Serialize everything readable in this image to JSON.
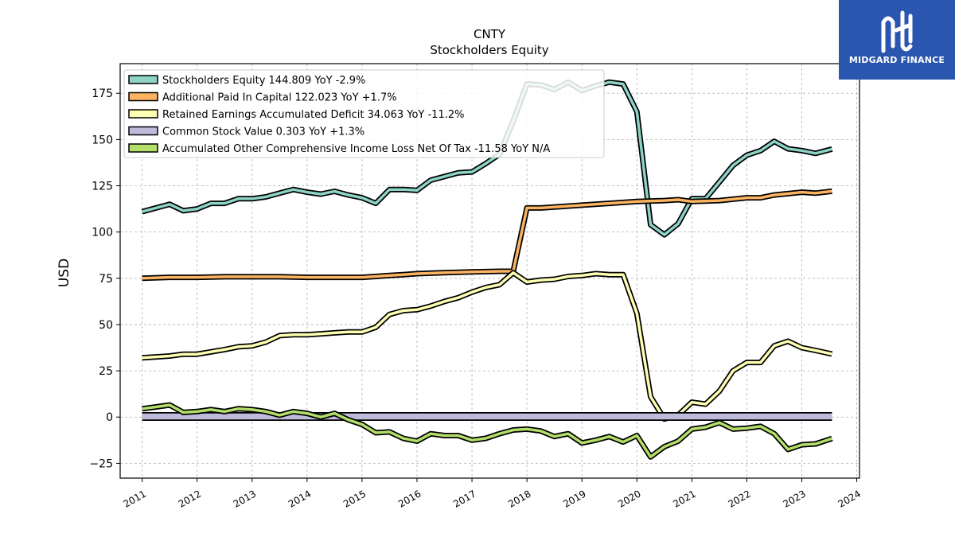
{
  "chart_data": {
    "type": "line",
    "title": "CNTY",
    "subtitle": "Stockholders  Equity",
    "ylabel": "USD",
    "xlabel": "",
    "ylim": [
      -33,
      191
    ],
    "xlim": [
      2010.6,
      2024.05
    ],
    "y_ticks": [
      -25,
      0,
      25,
      50,
      75,
      100,
      125,
      150,
      175
    ],
    "x_ticks": [
      2011,
      2012,
      2013,
      2014,
      2015,
      2016,
      2017,
      2018,
      2019,
      2020,
      2021,
      2022,
      2023,
      2024
    ],
    "grid": true,
    "legend_position": "top-left",
    "series": [
      {
        "name": "Stockholders Equity  144.809 YoY -2.9%",
        "color": "#8dd3c7",
        "x": [
          2011.0,
          2011.25,
          2011.5,
          2011.75,
          2012.0,
          2012.25,
          2012.5,
          2012.75,
          2013.0,
          2013.25,
          2013.5,
          2013.75,
          2014.0,
          2014.25,
          2014.5,
          2014.75,
          2015.0,
          2015.25,
          2015.5,
          2015.75,
          2016.0,
          2016.25,
          2016.5,
          2016.75,
          2017.0,
          2017.25,
          2017.5,
          2017.75,
          2018.0,
          2018.25,
          2018.5,
          2018.75,
          2019.0,
          2019.25,
          2019.5,
          2019.75,
          2020.0,
          2020.25,
          2020.5,
          2020.75,
          2021.0,
          2021.25,
          2021.5,
          2021.75,
          2022.0,
          2022.25,
          2022.5,
          2022.75,
          2023.0,
          2023.25,
          2023.55
        ],
        "y": [
          111,
          113,
          115,
          111.5,
          112.5,
          115.5,
          115.5,
          118,
          118,
          119,
          121,
          123,
          121.5,
          120.5,
          122,
          120,
          118.5,
          115.5,
          123,
          123,
          122.5,
          128,
          130,
          132,
          132.5,
          137,
          142,
          160,
          180,
          179.5,
          177,
          181,
          176.5,
          179,
          181,
          180,
          165,
          104,
          98.5,
          104.5,
          118,
          118,
          127,
          136,
          141.5,
          144,
          149,
          145,
          144,
          142.5,
          144.809
        ]
      },
      {
        "name": "Additional Paid In Capital  122.023 YoY +1.7%",
        "color": "#fdb462",
        "x": [
          2011.0,
          2011.5,
          2012.0,
          2012.5,
          2013.0,
          2013.5,
          2014.0,
          2014.5,
          2015.0,
          2015.25,
          2015.5,
          2015.75,
          2016.0,
          2016.5,
          2017.0,
          2017.5,
          2017.75,
          2018.0,
          2018.25,
          2018.5,
          2019.0,
          2019.5,
          2020.0,
          2020.5,
          2020.75,
          2021.0,
          2021.5,
          2022.0,
          2022.25,
          2022.5,
          2023.0,
          2023.25,
          2023.55
        ],
        "y": [
          75,
          75.5,
          75.5,
          75.8,
          75.8,
          75.8,
          75.5,
          75.5,
          75.5,
          76,
          76.5,
          77,
          77.5,
          78,
          78.5,
          78.8,
          78.8,
          113,
          113,
          113.5,
          114.5,
          115.5,
          116.5,
          117,
          117.5,
          116.5,
          117,
          118.5,
          118.5,
          120,
          121.5,
          121,
          122.023
        ]
      },
      {
        "name": "Retained Earnings Accumulated Deficit  34.063 YoY -11.2%",
        "color": "#ffffb3",
        "x": [
          2011.0,
          2011.5,
          2011.75,
          2012.0,
          2012.5,
          2012.75,
          2013.0,
          2013.25,
          2013.5,
          2013.75,
          2014.0,
          2014.25,
          2014.5,
          2014.75,
          2015.0,
          2015.25,
          2015.5,
          2015.75,
          2016.0,
          2016.25,
          2016.5,
          2016.75,
          2017.0,
          2017.25,
          2017.5,
          2017.75,
          2018.0,
          2018.25,
          2018.5,
          2018.75,
          2019.0,
          2019.25,
          2019.5,
          2019.75,
          2020.0,
          2020.25,
          2020.5,
          2020.75,
          2021.0,
          2021.25,
          2021.5,
          2021.75,
          2022.0,
          2022.25,
          2022.5,
          2022.75,
          2023.0,
          2023.25,
          2023.55
        ],
        "y": [
          32,
          33,
          34,
          34,
          36.5,
          38,
          38.5,
          40.5,
          44,
          44.5,
          44.5,
          45,
          45.5,
          46,
          46,
          48.5,
          55.5,
          57.5,
          58,
          60,
          62.5,
          64.5,
          67.5,
          70,
          71.5,
          78,
          73,
          74,
          74.5,
          76,
          76.5,
          77.5,
          77,
          77,
          56,
          11,
          -1,
          1,
          8,
          7,
          14,
          25,
          29.5,
          29.5,
          38.5,
          41,
          37.5,
          36,
          34.063
        ]
      },
      {
        "name": "Common Stock Value  0.303 YoY +1.3%",
        "color": "#bebada",
        "x": [
          2011.0,
          2012.0,
          2013.0,
          2014.0,
          2015.0,
          2016.0,
          2017.0,
          2018.0,
          2019.0,
          2020.0,
          2021.0,
          2022.0,
          2023.0,
          2023.55
        ],
        "y": [
          0.3,
          0.3,
          0.3,
          0.3,
          0.3,
          0.3,
          0.3,
          0.3,
          0.3,
          0.3,
          0.3,
          0.3,
          0.3,
          0.303
        ]
      },
      {
        "name": "Accumulated Other Comprehensive Income Loss Net Of Tax  -11.58 YoY N/A",
        "color": "#b3de69",
        "x": [
          2011.0,
          2011.25,
          2011.5,
          2011.75,
          2012.0,
          2012.25,
          2012.5,
          2012.75,
          2013.0,
          2013.25,
          2013.5,
          2013.75,
          2014.0,
          2014.25,
          2014.5,
          2014.75,
          2015.0,
          2015.25,
          2015.5,
          2015.75,
          2016.0,
          2016.25,
          2016.5,
          2016.75,
          2017.0,
          2017.25,
          2017.5,
          2017.75,
          2018.0,
          2018.25,
          2018.5,
          2018.75,
          2019.0,
          2019.25,
          2019.5,
          2019.75,
          2020.0,
          2020.25,
          2020.5,
          2020.75,
          2021.0,
          2021.25,
          2021.5,
          2021.75,
          2022.0,
          2022.25,
          2022.5,
          2022.75,
          2023.0,
          2023.25,
          2023.55
        ],
        "y": [
          4.5,
          5.5,
          6.5,
          2.5,
          3,
          4,
          3,
          4.5,
          4,
          3,
          1,
          3,
          2,
          0,
          2,
          -1.5,
          -4,
          -8.5,
          -8,
          -11.5,
          -13,
          -9,
          -10,
          -10,
          -12.5,
          -11.5,
          -9,
          -7,
          -6.5,
          -7.5,
          -10.5,
          -9,
          -14,
          -12.5,
          -10.5,
          -13.5,
          -10,
          -21.5,
          -16,
          -13,
          -6.5,
          -5.5,
          -3,
          -6.5,
          -6,
          -5,
          -9,
          -17.5,
          -15,
          -14.5,
          -11.58
        ]
      }
    ]
  },
  "logo": {
    "text": "MIDGARD FINANCE"
  }
}
